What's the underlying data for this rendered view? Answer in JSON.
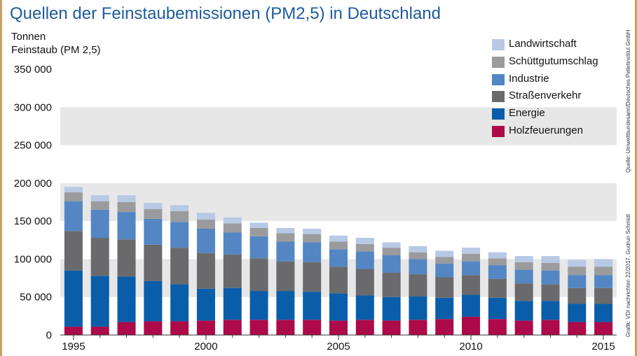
{
  "colors": {
    "Landwirtschaft": "#b7c9e5",
    "Schüttgutumschlag": "#9b9b9d",
    "Industrie": "#5386c3",
    "Straßenverkehr": "#6a6a6c",
    "Energie": "#0a5ea9",
    "Holzfeuerungen": "#ad0a4a",
    "title": "#1f5b9c",
    "band": "#e7e7e7"
  },
  "side_notes": {
    "source": "Quelle: Umweltbundesamt/Deutsches Pelletinstitut GmbH",
    "graphic": "Grafik: VDI nachrichten 22/2017, Gudrun Schmidt"
  },
  "chart_data": {
    "type": "bar",
    "stacked": true,
    "title": "Quellen der Feinstaubemissionen (PM2,5) in Deutschland",
    "ylabel": [
      "Tonnen",
      "Feinstaub (PM 2,5)"
    ],
    "xlabel": "",
    "ylim": [
      0,
      350000
    ],
    "yticks": [
      0,
      50000,
      100000,
      150000,
      200000,
      250000,
      300000,
      350000
    ],
    "ytick_labels": [
      "0",
      "50 000",
      "100 000",
      "150 000",
      "200 000",
      "250 000",
      "300 000",
      "350 000"
    ],
    "categories": [
      "1995",
      "1996",
      "1997",
      "1998",
      "1999",
      "2000",
      "2001",
      "2002",
      "2003",
      "2004",
      "2005",
      "2006",
      "2007",
      "2008",
      "2009",
      "2010",
      "2011",
      "2012",
      "2013",
      "2014",
      "2015"
    ],
    "xtick_labels": [
      "1995",
      "2000",
      "2005",
      "2010",
      "2015"
    ],
    "legend_position": "top-right",
    "series": [
      {
        "name": "Holzfeuerungen",
        "values": [
          11000,
          11000,
          17000,
          18000,
          18000,
          19000,
          20000,
          20000,
          20000,
          20000,
          19000,
          20000,
          19000,
          20000,
          21000,
          24000,
          21000,
          19000,
          20000,
          17000,
          17000
        ]
      },
      {
        "name": "Energie",
        "values": [
          74000,
          67000,
          60000,
          53000,
          49000,
          42000,
          42000,
          38000,
          38000,
          37000,
          36000,
          32000,
          31000,
          31000,
          28000,
          29000,
          28000,
          26000,
          25000,
          24000,
          24000
        ]
      },
      {
        "name": "Straßenverkehr",
        "values": [
          52000,
          50000,
          49000,
          48000,
          48000,
          47000,
          44000,
          43000,
          39000,
          39000,
          35000,
          35000,
          32000,
          29000,
          27000,
          26000,
          25000,
          23000,
          22000,
          21000,
          21000
        ]
      },
      {
        "name": "Industrie",
        "values": [
          39000,
          37000,
          36000,
          34000,
          34000,
          32000,
          29000,
          29000,
          26000,
          26000,
          23000,
          23000,
          23000,
          20000,
          18000,
          18000,
          18000,
          18000,
          18000,
          17000,
          17000
        ]
      },
      {
        "name": "Schüttgutumschlag",
        "values": [
          12000,
          11000,
          13000,
          13000,
          14000,
          12000,
          12000,
          11000,
          11000,
          11000,
          10000,
          10000,
          10000,
          9000,
          9000,
          10000,
          9000,
          10000,
          10000,
          11000,
          11000
        ]
      },
      {
        "name": "Landwirtschaft",
        "values": [
          7000,
          8000,
          9000,
          8000,
          8000,
          9000,
          8000,
          7000,
          7000,
          7000,
          8000,
          8000,
          7000,
          8000,
          8000,
          8000,
          8000,
          8000,
          9000,
          9000,
          10000
        ]
      }
    ],
    "legend_order": [
      "Landwirtschaft",
      "Schüttgutumschlag",
      "Industrie",
      "Straßenverkehr",
      "Energie",
      "Holzfeuerungen"
    ]
  }
}
